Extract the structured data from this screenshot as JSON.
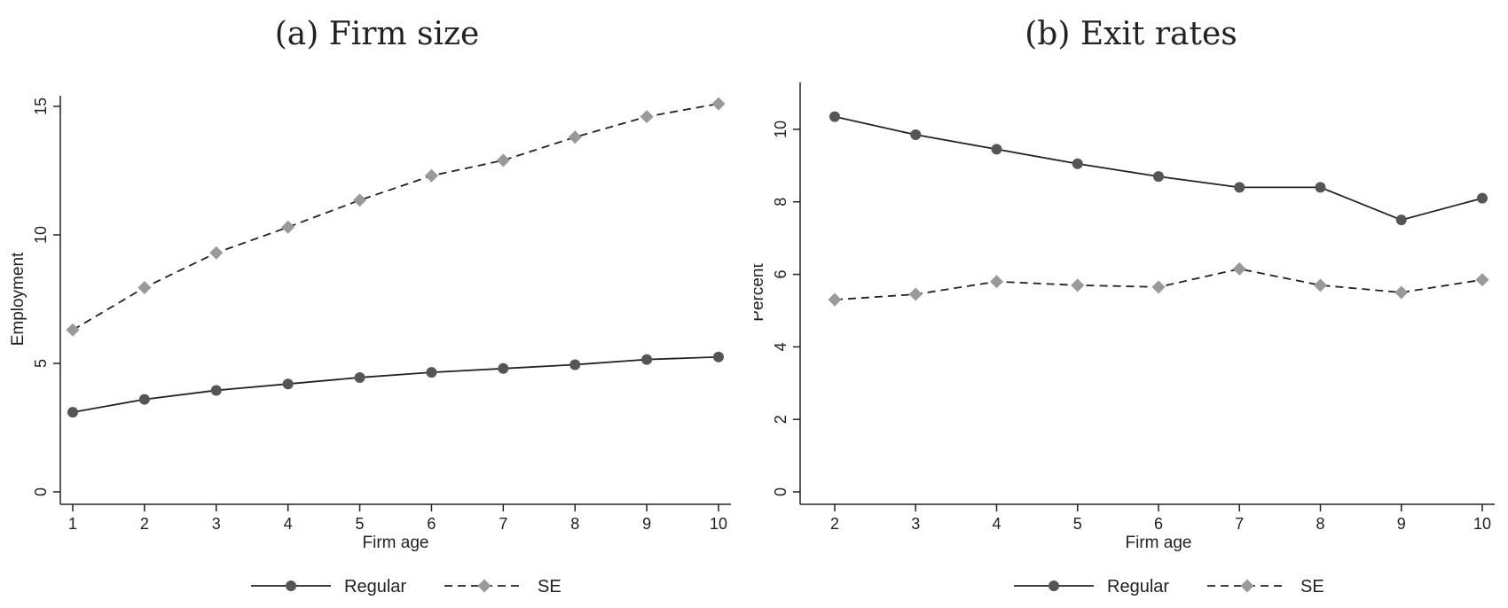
{
  "chart_data": [
    {
      "type": "line",
      "title": "(a) Firm size",
      "xlabel": "Firm age",
      "ylabel": "Employment",
      "xlim": [
        1,
        10
      ],
      "ylim": [
        0,
        15
      ],
      "xticks": [
        1,
        2,
        3,
        4,
        5,
        6,
        7,
        8,
        9,
        10
      ],
      "yticks": [
        0,
        5,
        10,
        15
      ],
      "grid": false,
      "legend": "bottom",
      "x": [
        1,
        2,
        3,
        4,
        5,
        6,
        7,
        8,
        9,
        10
      ],
      "series": [
        {
          "name": "Regular",
          "values": [
            3.1,
            3.6,
            3.95,
            4.2,
            4.45,
            4.65,
            4.8,
            4.95,
            5.15,
            5.25
          ],
          "color": "#555555",
          "marker": "circle",
          "dash": "solid"
        },
        {
          "name": "SE",
          "values": [
            6.3,
            7.95,
            9.3,
            10.3,
            11.35,
            12.3,
            12.9,
            13.8,
            14.6,
            15.1
          ],
          "color": "#999999",
          "marker": "diamond",
          "dash": "dashed"
        }
      ]
    },
    {
      "type": "line",
      "title": "(b) Exit rates",
      "xlabel": "Firm age",
      "ylabel": "Percent",
      "xlim": [
        2,
        10
      ],
      "ylim": [
        0,
        11
      ],
      "xticks": [
        2,
        3,
        4,
        5,
        6,
        7,
        8,
        9,
        10
      ],
      "yticks": [
        0,
        2,
        4,
        6,
        8,
        10
      ],
      "grid": false,
      "legend": "bottom",
      "x": [
        2,
        3,
        4,
        5,
        6,
        7,
        8,
        9,
        10
      ],
      "series": [
        {
          "name": "Regular",
          "values": [
            10.35,
            9.85,
            9.45,
            9.05,
            8.7,
            8.4,
            8.4,
            7.5,
            8.1
          ],
          "color": "#555555",
          "marker": "circle",
          "dash": "solid"
        },
        {
          "name": "SE",
          "values": [
            5.3,
            5.45,
            5.8,
            5.7,
            5.65,
            6.15,
            5.7,
            5.5,
            5.85
          ],
          "color": "#999999",
          "marker": "diamond",
          "dash": "dashed"
        }
      ]
    }
  ]
}
